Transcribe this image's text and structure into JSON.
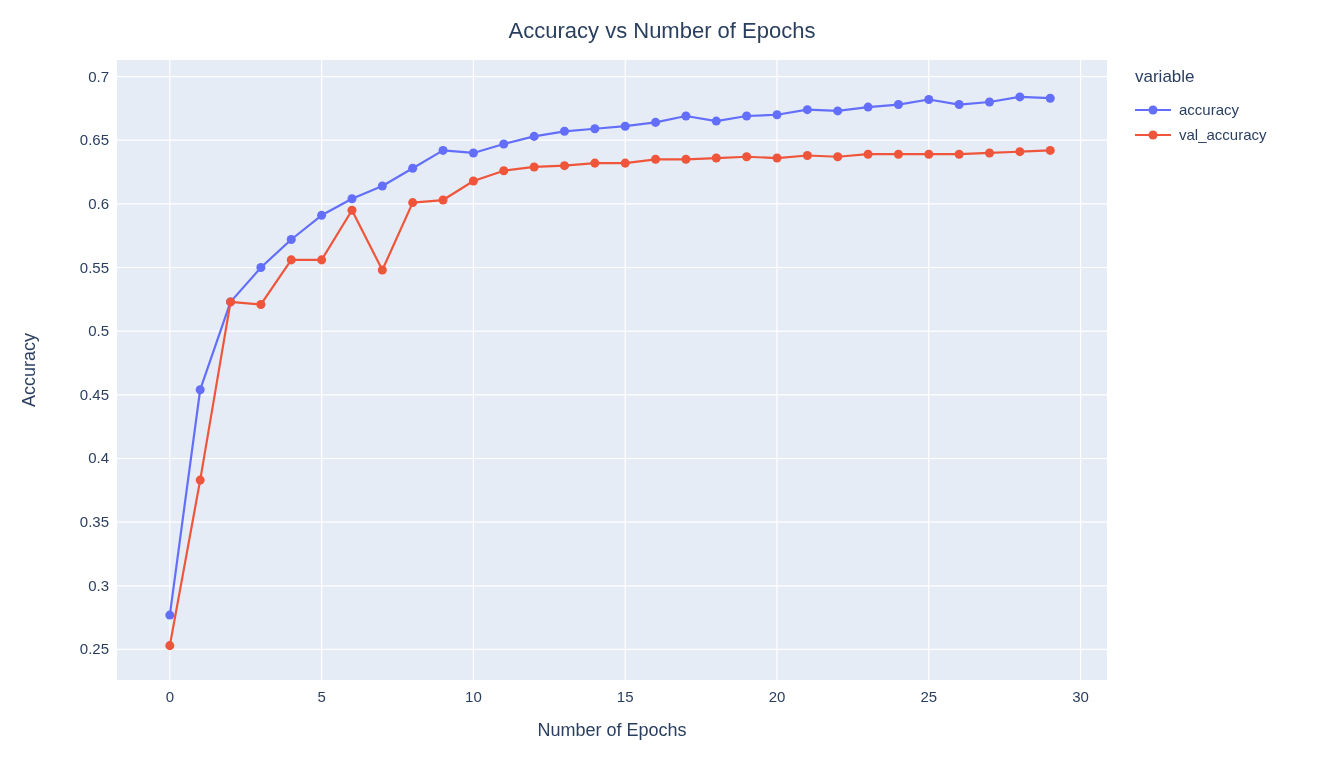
{
  "chart_data": {
    "type": "line",
    "title": "Accuracy vs Number of Epochs",
    "xlabel": "Number of Epochs",
    "ylabel": "Accuracy",
    "legend_title": "variable",
    "x": [
      0,
      1,
      2,
      3,
      4,
      5,
      6,
      7,
      8,
      9,
      10,
      11,
      12,
      13,
      14,
      15,
      16,
      17,
      18,
      19,
      20,
      21,
      22,
      23,
      24,
      25,
      26,
      27,
      28,
      29
    ],
    "series": [
      {
        "name": "accuracy",
        "color": "#636efa",
        "values": [
          0.277,
          0.454,
          0.523,
          0.55,
          0.572,
          0.591,
          0.604,
          0.614,
          0.628,
          0.642,
          0.64,
          0.647,
          0.653,
          0.657,
          0.659,
          0.661,
          0.664,
          0.669,
          0.665,
          0.669,
          0.67,
          0.674,
          0.673,
          0.676,
          0.678,
          0.682,
          0.678,
          0.68,
          0.684,
          0.683
        ]
      },
      {
        "name": "val_accuracy",
        "color": "#ef553b",
        "values": [
          0.253,
          0.383,
          0.523,
          0.521,
          0.556,
          0.556,
          0.595,
          0.548,
          0.601,
          0.603,
          0.618,
          0.626,
          0.629,
          0.63,
          0.632,
          0.632,
          0.635,
          0.635,
          0.636,
          0.637,
          0.636,
          0.638,
          0.637,
          0.639,
          0.639,
          0.639,
          0.639,
          0.64,
          0.641,
          0.642
        ]
      }
    ],
    "xlim": [
      -1.74,
      30.87
    ],
    "xticks": [
      0,
      5,
      10,
      15,
      20,
      25,
      30
    ],
    "ylim": [
      0.226,
      0.713
    ],
    "yticks": [
      0.25,
      0.3,
      0.35,
      0.4,
      0.45,
      0.5,
      0.55,
      0.6,
      0.65,
      0.7
    ],
    "grid": true,
    "legend": "top right",
    "marker": "circle",
    "line_style": "solid"
  }
}
